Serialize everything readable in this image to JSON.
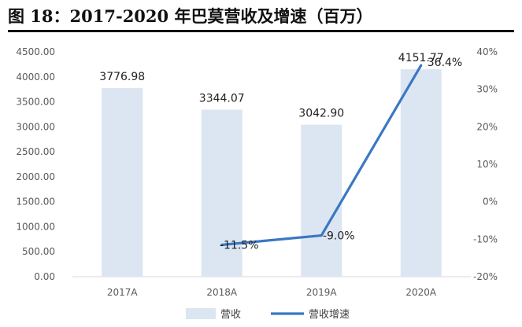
{
  "figure": {
    "title": "图 18：2017-2020 年巴莫营收及增速（百万）"
  },
  "chart_data": {
    "type": "bar",
    "title": "",
    "xlabel": "",
    "ylabel": "",
    "categories": [
      "2017A",
      "2018A",
      "2019A",
      "2020A"
    ],
    "series": [
      {
        "name": "营收",
        "type": "bar",
        "axis": "left",
        "values": [
          3776.98,
          3344.07,
          3042.9,
          4151.77
        ],
        "labels": [
          "3776.98",
          "3344.07",
          "3042.90",
          "4151.77"
        ],
        "color": "#dce6f2"
      },
      {
        "name": "营收增速",
        "type": "line",
        "axis": "right",
        "values": [
          null,
          -11.5,
          -9.0,
          36.4
        ],
        "labels": [
          "",
          "-11.5%",
          "-9.0%",
          "36.4%"
        ],
        "color": "#3a78c3"
      }
    ],
    "ylim_left": [
      0,
      4500
    ],
    "yticks_left": [
      "0.00",
      "500.00",
      "1000.00",
      "1500.00",
      "2000.00",
      "2500.00",
      "3000.00",
      "3500.00",
      "4000.00",
      "4500.00"
    ],
    "ylim_right": [
      -20,
      40
    ],
    "yticks_right": [
      "-20%",
      "-10%",
      "0%",
      "10%",
      "20%",
      "30%",
      "40%"
    ],
    "grid": false,
    "legend_position": "bottom"
  }
}
